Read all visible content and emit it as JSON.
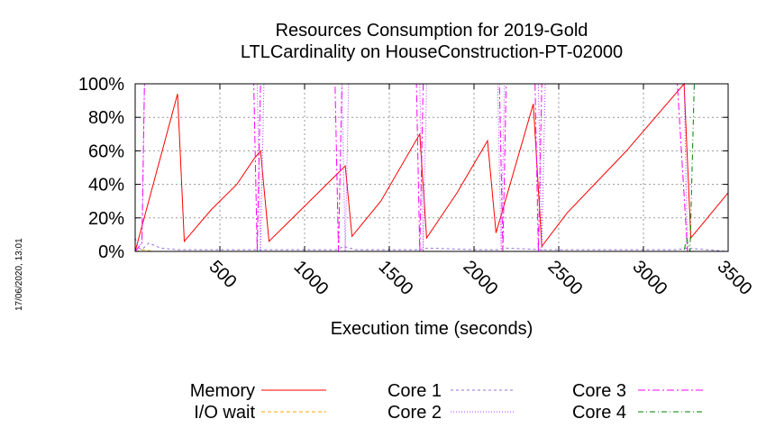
{
  "chart_data": {
    "type": "line",
    "title": "Resources Consumption for 2019-Gold",
    "subtitle": "LTLCardinality on HouseConstruction-PT-02000",
    "xlabel": "Execution time (seconds)",
    "ylabel": "",
    "xlim": [
      0,
      3500
    ],
    "ylim": [
      0,
      100
    ],
    "x_ticks": [
      500,
      1000,
      1500,
      2000,
      2500,
      3000,
      3500
    ],
    "x_tick_labels": [
      "500",
      "1000",
      "1500",
      "2000",
      "2500",
      "3000",
      "3500"
    ],
    "y_ticks": [
      0,
      20,
      40,
      60,
      80,
      100
    ],
    "y_tick_labels": [
      "0%",
      "20%",
      "40%",
      "60%",
      "80%",
      "100%"
    ],
    "grid": true,
    "legend_placement": "bottom",
    "timestamp": "17/06/2020, 13:01",
    "series": [
      {
        "name": "Memory",
        "color": "#ff0000",
        "dash": "",
        "x": [
          0,
          250,
          290,
          450,
          600,
          700,
          740,
          790,
          950,
          1200,
          1240,
          1280,
          1450,
          1680,
          1720,
          1900,
          2080,
          2130,
          2350,
          2400,
          2550,
          2900,
          3240,
          3280,
          3500
        ],
        "y": [
          0,
          94,
          6,
          25,
          40,
          55,
          60,
          6,
          22,
          47,
          51,
          9,
          30,
          70,
          8,
          35,
          66,
          11,
          88,
          3,
          23,
          60,
          100,
          8,
          35
        ]
      },
      {
        "name": "I/O wait",
        "color": "#ffa500",
        "dash": "4,3",
        "x": [
          0,
          50,
          100,
          3500
        ],
        "y": [
          0,
          1,
          0,
          0
        ]
      },
      {
        "name": "Core 1",
        "color": "#9370db",
        "dash": "3,3",
        "x": [
          0,
          20,
          40,
          80,
          150,
          250,
          400,
          720,
          790,
          1000,
          1190,
          1230,
          1300,
          1500,
          1680,
          1730,
          2000,
          2140,
          2180,
          2400,
          2600,
          3200,
          3260,
          3500
        ],
        "y": [
          8,
          2,
          1,
          5,
          2,
          1,
          1,
          1,
          1,
          1,
          1,
          3,
          1,
          1,
          1,
          2,
          1,
          1,
          2,
          1,
          1,
          1,
          2,
          0
        ]
      },
      {
        "name": "Core 2",
        "color": "#b040ff",
        "dash": "1,2",
        "x": [
          0,
          40,
          55,
          720,
          740,
          760,
          1220,
          1240,
          1260,
          1680,
          1700,
          1720,
          2140,
          2160,
          2180,
          2380,
          2400,
          2420,
          3240,
          3260,
          3500
        ],
        "y": [
          0,
          5,
          100,
          100,
          0,
          100,
          100,
          0,
          100,
          100,
          0,
          100,
          100,
          0,
          100,
          100,
          0,
          100,
          100,
          0,
          0
        ]
      },
      {
        "name": "Core 3",
        "color": "#ff00ff",
        "dash": "8,3,2,3",
        "x": [
          0,
          40,
          55,
          700,
          720,
          740,
          1180,
          1200,
          1220,
          1660,
          1680,
          1700,
          2150,
          2170,
          2190,
          2360,
          2380,
          2400,
          3200,
          3260,
          3500
        ],
        "y": [
          0,
          5,
          100,
          100,
          0,
          100,
          100,
          0,
          100,
          100,
          0,
          100,
          100,
          0,
          100,
          100,
          0,
          100,
          100,
          0,
          0
        ]
      },
      {
        "name": "Core 4",
        "color": "#008000",
        "dash": "6,3,1,3",
        "x": [
          0,
          3240,
          3255,
          3275,
          3300,
          3500
        ],
        "y": [
          0,
          0,
          8,
          0,
          100,
          100
        ]
      }
    ]
  }
}
